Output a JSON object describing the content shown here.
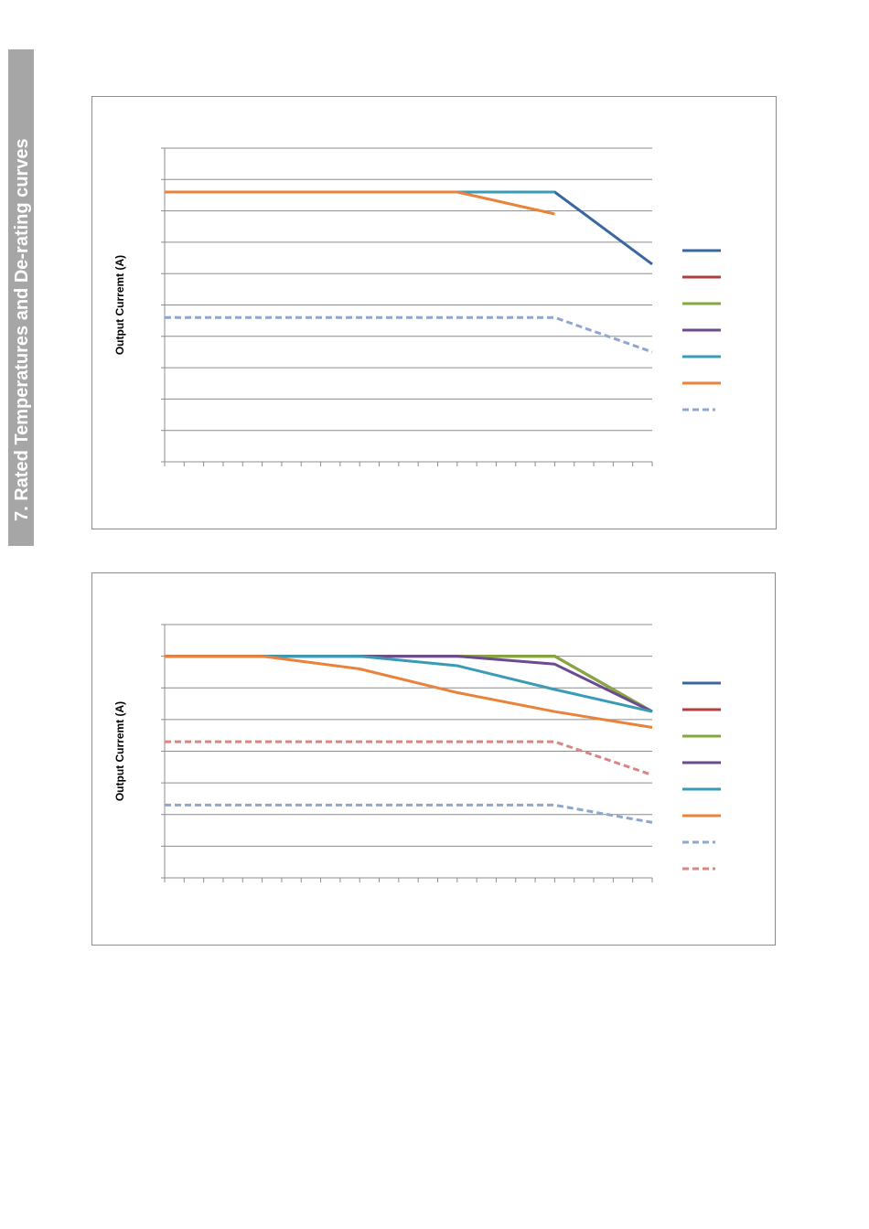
{
  "page": {
    "section_title": "7. Rated Temperatures and De-rating curves"
  },
  "chart_data": [
    {
      "type": "line",
      "title": "",
      "xlabel": "",
      "ylabel": "Output Curremt (A)",
      "xlim": [
        0,
        25
      ],
      "ylim": [
        0,
        10
      ],
      "grid": true,
      "legend_position": "right",
      "series": [
        {
          "color": "#3b67a1",
          "dashed": false,
          "x": [
            0,
            15,
            20,
            25
          ],
          "y": [
            8.6,
            8.6,
            8.6,
            6.3
          ]
        },
        {
          "color": "#b0403c",
          "dashed": false,
          "x": [
            0,
            15
          ],
          "y": [
            8.6,
            8.6
          ]
        },
        {
          "color": "#85a83e",
          "dashed": false,
          "x": [
            0,
            15
          ],
          "y": [
            8.6,
            8.6
          ]
        },
        {
          "color": "#6c4a8f",
          "dashed": false,
          "x": [
            0,
            15
          ],
          "y": [
            8.6,
            8.6
          ]
        },
        {
          "color": "#3a9bb6",
          "dashed": false,
          "x": [
            0,
            15,
            20
          ],
          "y": [
            8.6,
            8.6,
            8.6
          ]
        },
        {
          "color": "#e9823b",
          "dashed": false,
          "x": [
            0,
            15,
            20
          ],
          "y": [
            8.6,
            8.6,
            7.9
          ]
        },
        {
          "color": "#8fa7cf",
          "dashed": true,
          "x": [
            0,
            15,
            20,
            25
          ],
          "y": [
            4.6,
            4.6,
            4.6,
            3.5
          ]
        }
      ]
    },
    {
      "type": "line",
      "title": "",
      "xlabel": "",
      "ylabel": "Output Curremt (A)",
      "xlim": [
        0,
        25
      ],
      "ylim": [
        0,
        8
      ],
      "grid": true,
      "legend_position": "right",
      "series": [
        {
          "color": "#3b67a1",
          "dashed": false,
          "x": [
            0,
            20,
            25
          ],
          "y": [
            7.0,
            7.0,
            5.25
          ]
        },
        {
          "color": "#b0403c",
          "dashed": false,
          "x": [
            0,
            20,
            25
          ],
          "y": [
            7.0,
            7.0,
            5.25
          ]
        },
        {
          "color": "#85a83e",
          "dashed": false,
          "x": [
            0,
            20,
            25
          ],
          "y": [
            7.0,
            7.0,
            5.25
          ]
        },
        {
          "color": "#6c4a8f",
          "dashed": false,
          "x": [
            0,
            15,
            20,
            25
          ],
          "y": [
            7.0,
            7.0,
            6.75,
            5.25
          ]
        },
        {
          "color": "#3a9bb6",
          "dashed": false,
          "x": [
            0,
            10,
            15,
            20,
            25
          ],
          "y": [
            7.0,
            7.0,
            6.7,
            5.95,
            5.25
          ]
        },
        {
          "color": "#e9823b",
          "dashed": false,
          "x": [
            0,
            5,
            10,
            15,
            20,
            25
          ],
          "y": [
            7.0,
            7.0,
            6.6,
            5.85,
            5.25,
            4.75
          ]
        },
        {
          "color": "#8fa7cf",
          "dashed": true,
          "x": [
            0,
            15,
            20,
            25
          ],
          "y": [
            2.3,
            2.3,
            2.3,
            1.75
          ]
        },
        {
          "color": "#d98583",
          "dashed": true,
          "x": [
            0,
            15,
            20,
            25
          ],
          "y": [
            4.3,
            4.3,
            4.3,
            3.25
          ]
        }
      ]
    }
  ]
}
